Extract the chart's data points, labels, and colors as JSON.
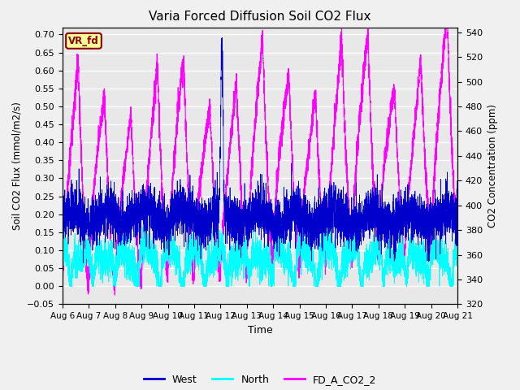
{
  "title": "Varia Forced Diffusion Soil CO2 Flux",
  "ylabel_left": "Soil CO2 Flux (mmol/m2/s)",
  "ylabel_right": "CO2 Concentration (ppm)",
  "xlabel": "Time",
  "ylim_left": [
    -0.05,
    0.72
  ],
  "ylim_right": [
    320,
    544
  ],
  "yticks_left": [
    -0.05,
    0.0,
    0.05,
    0.1,
    0.15,
    0.2,
    0.25,
    0.3,
    0.35,
    0.4,
    0.45,
    0.5,
    0.55,
    0.6,
    0.65,
    0.7
  ],
  "yticks_right": [
    320,
    340,
    360,
    380,
    400,
    420,
    440,
    460,
    480,
    500,
    520,
    540
  ],
  "xtick_labels": [
    "Aug 6",
    "Aug 7",
    "Aug 8",
    "Aug 9",
    "Aug 10",
    "Aug 11",
    "Aug 12",
    "Aug 13",
    "Aug 14",
    "Aug 15",
    "Aug 16",
    "Aug 17",
    "Aug 18",
    "Aug 19",
    "Aug 20",
    "Aug 21"
  ],
  "color_west": "#0000CD",
  "color_north": "#00FFFF",
  "color_co2": "#FF00FF",
  "label_west": "West",
  "label_north": "North",
  "label_co2": "FD_A_CO2_2",
  "annotation_text": "VR_fd",
  "annotation_bg": "#FFFF99",
  "annotation_edge": "#8B0000",
  "plot_bg": "#e8e8e8",
  "fig_bg": "#f0f0f0",
  "n_points": 5000,
  "seed": 42
}
